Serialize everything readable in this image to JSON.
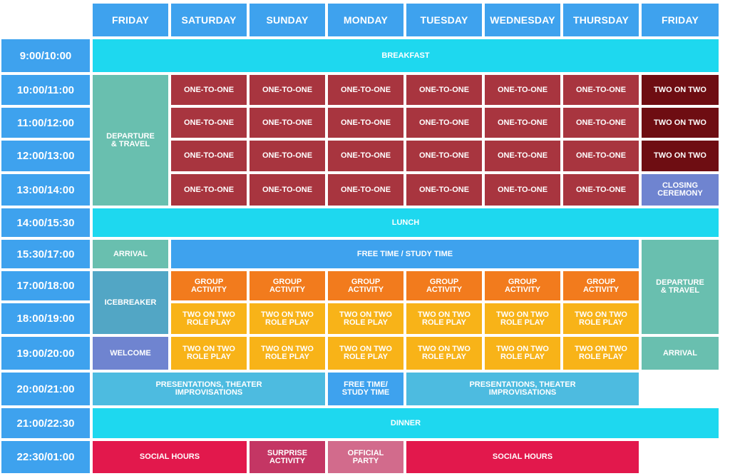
{
  "schedule": {
    "days": [
      "FRIDAY",
      "SATURDAY",
      "SUNDAY",
      "MONDAY",
      "TUESDAY",
      "WEDNESDAY",
      "THURSDAY",
      "FRIDAY"
    ],
    "times": [
      "9:00/10:00",
      "10:00/11:00",
      "11:00/12:00",
      "12:00/13:00",
      "13:00/14:00",
      "14:00/15:30",
      "15:30/17:00",
      "17:00/18:00",
      "18:00/19:00",
      "19:00/20:00",
      "20:00/21:00",
      "21:00/22:30",
      "22:30/01:00"
    ],
    "colors": {
      "header": "#3ea2ee",
      "time": "#3ea2ee",
      "meal": "#1ed8ef",
      "one_to_one": "#a8353f",
      "two_on_two_dark": "#6e0d12",
      "closing": "#6f84d0",
      "departure_travel": "#69bfaf",
      "free_time": "#3ea2ee",
      "group_activity": "#f27b1d",
      "role_play": "#f8b318",
      "icebreaker": "#52a6c5",
      "welcome": "#6f84d0",
      "presentations": "#4dbbe0",
      "social": "#e2184c",
      "surprise": "#c43664",
      "official": "#d26b8c"
    },
    "events": [
      {
        "label": "BREAKFAST",
        "type": "meal"
      },
      {
        "label": "DEPARTURE\n& TRAVEL",
        "type": "departure_travel"
      },
      {
        "label": "ONE-TO-ONE",
        "type": "one_to_one"
      },
      {
        "label": "TWO ON TWO",
        "type": "two_on_two_dark"
      },
      {
        "label": "CLOSING\nCEREMONY",
        "type": "closing"
      },
      {
        "label": "LUNCH",
        "type": "meal"
      },
      {
        "label": "ARRIVAL",
        "type": "departure_travel"
      },
      {
        "label": "FREE TIME / STUDY TIME",
        "type": "free_time"
      },
      {
        "label": "GROUP\nACTIVITY",
        "type": "group_activity"
      },
      {
        "label": "ICEBREAKER",
        "type": "icebreaker"
      },
      {
        "label": "TWO ON TWO\nROLE PLAY",
        "type": "role_play"
      },
      {
        "label": "WELCOME",
        "type": "welcome"
      },
      {
        "label": "PRESENTATIONS, THEATER\nIMPROVISATIONS",
        "type": "presentations"
      },
      {
        "label": "FREE TIME/\nSTUDY TIME",
        "type": "free_time"
      },
      {
        "label": "DINNER",
        "type": "meal"
      },
      {
        "label": "SOCIAL HOURS",
        "type": "social"
      },
      {
        "label": "SURPRISE\nACTIVITY",
        "type": "surprise"
      },
      {
        "label": "OFFICIAL\nPARTY",
        "type": "official"
      }
    ]
  }
}
